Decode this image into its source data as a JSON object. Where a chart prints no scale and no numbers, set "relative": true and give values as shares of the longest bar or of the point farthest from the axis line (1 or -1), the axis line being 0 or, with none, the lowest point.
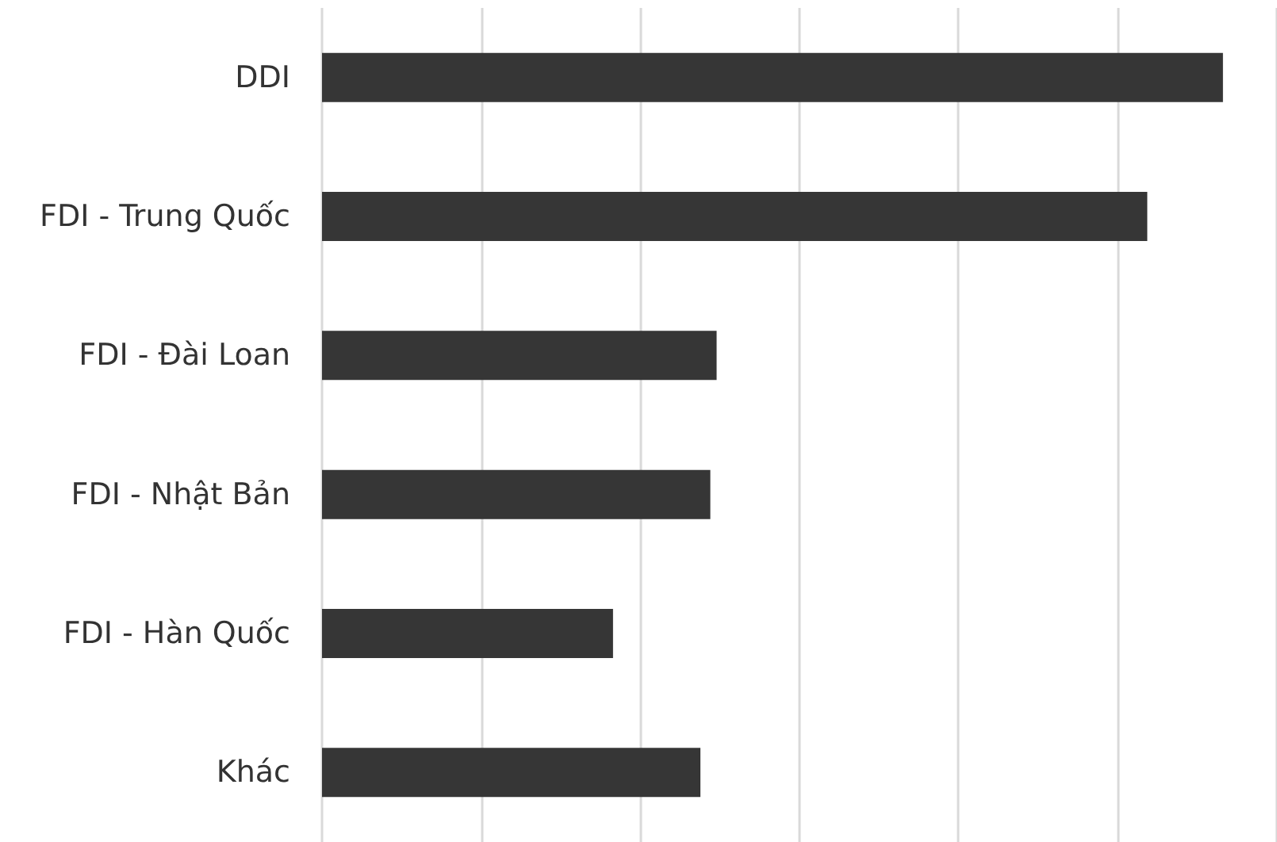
{
  "chart_data": {
    "type": "bar",
    "orientation": "horizontal",
    "relative": true,
    "categories": [
      "DDI",
      "FDI - Trung Quốc",
      "FDI - Đài Loan",
      "FDI - Nhật Bản",
      "FDI - Hàn Quốc",
      "Khác"
    ],
    "values": [
      1,
      0.916,
      0.438,
      0.431,
      0.323,
      0.42
    ],
    "color": "#363636",
    "grid": "x"
  }
}
